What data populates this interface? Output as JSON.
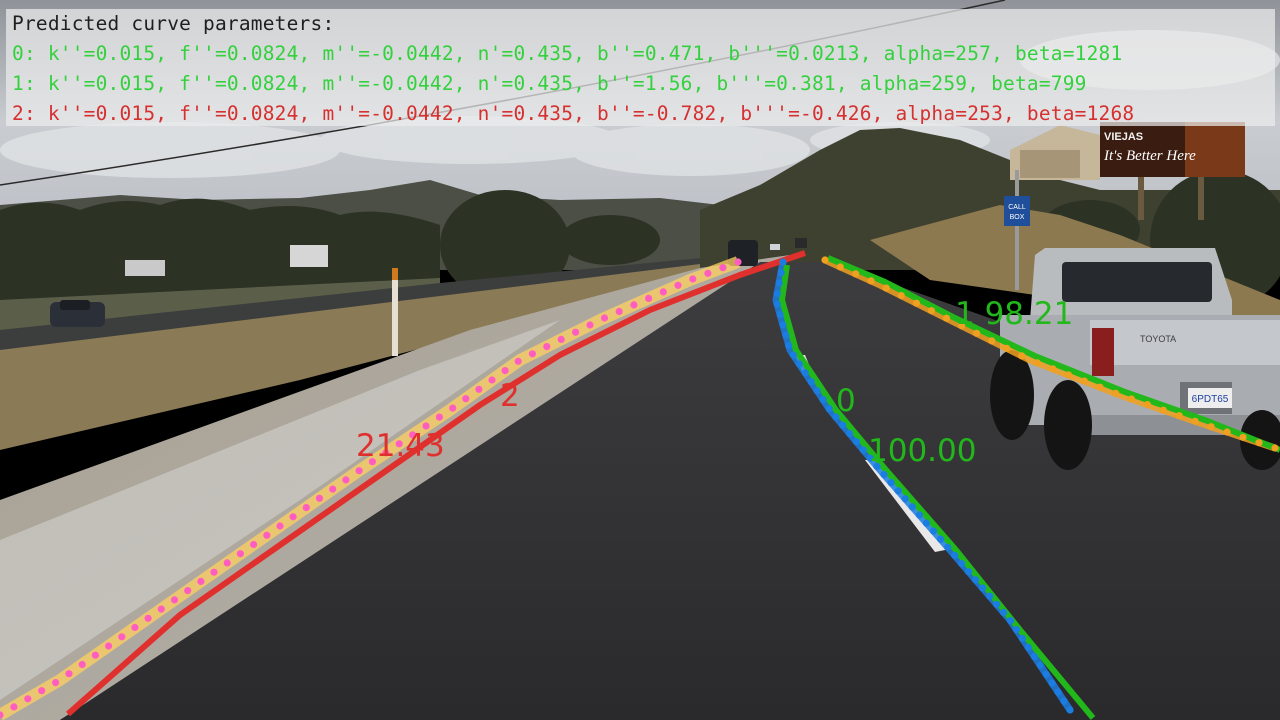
{
  "title": "Predicted curve parameters:",
  "params": [
    {
      "text": "0: k''=0.015, f''=0.0824, m''=-0.0442, n'=0.435, b''=0.471, b'''=0.0213, alpha=257, beta=1281",
      "color": "#33d13d"
    },
    {
      "text": "1: k''=0.015, f''=0.0824, m''=-0.0442, n'=0.435, b''=1.56, b'''=0.381, alpha=259, beta=799",
      "color": "#33d13d"
    },
    {
      "text": "2: k''=0.015, f''=0.0824, m''=-0.0442, n'=0.435, b''=-0.782, b'''=-0.426, alpha=253, beta=1268",
      "color": "#d63030"
    }
  ],
  "labels": {
    "lane0_id": "0",
    "lane0_score": "100.00",
    "lane1": "1 98.21",
    "lane2_id": "2",
    "lane2_score": "21.43"
  },
  "billboard": {
    "brand": "VIEJAS",
    "slogan": "It's Better Here"
  },
  "call_box": {
    "line1": "CALL",
    "line2": "BOX"
  },
  "plate": "6PDT65",
  "tailgate": "TOYOTA",
  "colors": {
    "pred_green": "#22b81c",
    "pred_red": "#e0302e",
    "gt_blue": "#1c7de0",
    "gt_orange": "#f0a020",
    "gt_pink": "#ff5ec0",
    "gt_yellow": "#ffd060"
  }
}
